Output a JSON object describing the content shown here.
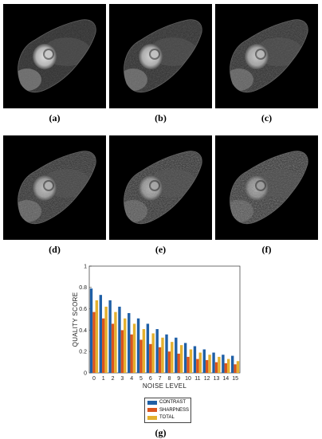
{
  "panels": [
    {
      "caption": "(a)"
    },
    {
      "caption": "(b)"
    },
    {
      "caption": "(c)"
    },
    {
      "caption": "(d)"
    },
    {
      "caption": "(e)"
    },
    {
      "caption": "(f)"
    }
  ],
  "chart_caption": "(g)",
  "chart_data": {
    "type": "bar",
    "title": "",
    "xlabel": "NOISE LEVEL",
    "ylabel": "QUALITY SCORE",
    "ylim": [
      0,
      1
    ],
    "yticks": [
      "0",
      "0.2",
      "0.4",
      "0.6",
      "0.8",
      "1"
    ],
    "grid": false,
    "legend_position": "below",
    "categories": [
      "0",
      "1",
      "2",
      "3",
      "4",
      "5",
      "6",
      "7",
      "8",
      "9",
      "10",
      "11",
      "12",
      "13",
      "14",
      "15"
    ],
    "series": [
      {
        "name": "CONTRAST",
        "color": "#1f5fa6",
        "values": [
          0.79,
          0.73,
          0.68,
          0.62,
          0.56,
          0.51,
          0.46,
          0.41,
          0.36,
          0.33,
          0.28,
          0.25,
          0.22,
          0.19,
          0.17,
          0.16
        ]
      },
      {
        "name": "SHARPNESS",
        "color": "#d9541e",
        "values": [
          0.57,
          0.51,
          0.46,
          0.4,
          0.36,
          0.31,
          0.27,
          0.24,
          0.2,
          0.18,
          0.15,
          0.13,
          0.12,
          0.1,
          0.09,
          0.08
        ]
      },
      {
        "name": "TOTAL",
        "color": "#e3b02e",
        "values": [
          0.68,
          0.62,
          0.57,
          0.51,
          0.46,
          0.41,
          0.37,
          0.33,
          0.29,
          0.26,
          0.22,
          0.19,
          0.17,
          0.15,
          0.13,
          0.11
        ]
      }
    ]
  }
}
